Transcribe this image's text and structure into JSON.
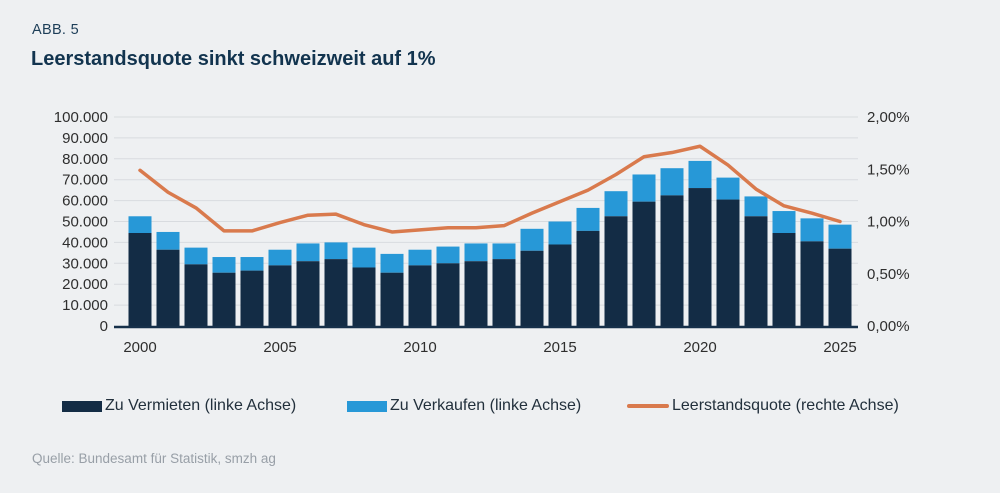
{
  "header": {
    "figure_label": "ABB. 5",
    "title": "Leerstandsquote sinkt schweizweit auf 1%"
  },
  "legend": [
    {
      "label": "Zu Vermieten (linke Achse)",
      "swatch": "rect",
      "color": "#132c45"
    },
    {
      "label": "Zu Verkaufen (linke Achse)",
      "swatch": "rect",
      "color": "#2798d7"
    },
    {
      "label": "Leerstandsquote (rechte Achse)",
      "swatch": "line",
      "color": "#d97a4d"
    }
  ],
  "source": "Quelle: Bundesamt für Statistik, smzh ag",
  "colors": {
    "background": "#eef0f2",
    "title_navy": "#12344f",
    "bar_dark": "#132c45",
    "bar_light": "#2798d7",
    "line_orange": "#d97a4d",
    "gridline": "#d8dbdf",
    "axis_line": "#16304a",
    "tick_text": "#2e2e2e",
    "source_text": "#989fa7"
  },
  "chart_data": {
    "type": "bar",
    "subtype": "stacked-bars-with-line-overlay",
    "title": "Leerstandsquote sinkt schweizweit auf 1%",
    "categories": [
      "2000",
      "2001",
      "2002",
      "2003",
      "2004",
      "2005",
      "2006",
      "2007",
      "2008",
      "2009",
      "2010",
      "2011",
      "2012",
      "2013",
      "2014",
      "2015",
      "2016",
      "2017",
      "2018",
      "2019",
      "2020",
      "2021",
      "2022",
      "2023",
      "2024",
      "2025"
    ],
    "series": [
      {
        "name": "Zu Vermieten (linke Achse)",
        "type": "bar",
        "stack": true,
        "axis": "left",
        "color": "#132c45",
        "values": [
          44500,
          36500,
          29500,
          25500,
          26500,
          29000,
          31000,
          32000,
          28000,
          25500,
          29000,
          30000,
          31000,
          32000,
          36000,
          39000,
          45500,
          52500,
          59500,
          62500,
          66000,
          60500,
          52500,
          44500,
          40500,
          37000
        ]
      },
      {
        "name": "Zu Verkaufen (linke Achse)",
        "type": "bar",
        "stack": true,
        "axis": "left",
        "color": "#2798d7",
        "values": [
          8000,
          8500,
          8000,
          7500,
          6500,
          7500,
          8500,
          8000,
          9500,
          9000,
          7500,
          8000,
          8500,
          7500,
          10500,
          11000,
          11000,
          12000,
          13000,
          13000,
          13000,
          10500,
          9500,
          10500,
          11000,
          11500
        ]
      },
      {
        "name": "Leerstandsquote (rechte Achse)",
        "type": "line",
        "axis": "right",
        "color": "#d97a4d",
        "values": [
          1.49,
          1.28,
          1.13,
          0.91,
          0.91,
          0.99,
          1.06,
          1.07,
          0.97,
          0.9,
          0.92,
          0.94,
          0.94,
          0.96,
          1.08,
          1.19,
          1.3,
          1.45,
          1.62,
          1.66,
          1.72,
          1.54,
          1.31,
          1.15,
          1.08,
          1.0
        ]
      }
    ],
    "left_axis": {
      "min": 0,
      "max": 100000,
      "tick_interval": 10000,
      "tick_labels": [
        "100.000",
        "90.000",
        "80.000",
        "70.000",
        "60.000",
        "50.000",
        "40.000",
        "30.000",
        "20.000",
        "10.000",
        "0"
      ]
    },
    "right_axis": {
      "min": 0,
      "max": 2,
      "tick_interval": 0.5,
      "tick_labels": [
        "2,00%",
        "1,50%",
        "1,00%",
        "0,50%",
        "0,00%"
      ]
    },
    "x_tick_labels": [
      "2000",
      "2005",
      "2010",
      "2015",
      "2020",
      "2025"
    ],
    "grid": true,
    "legend_position": "bottom"
  }
}
